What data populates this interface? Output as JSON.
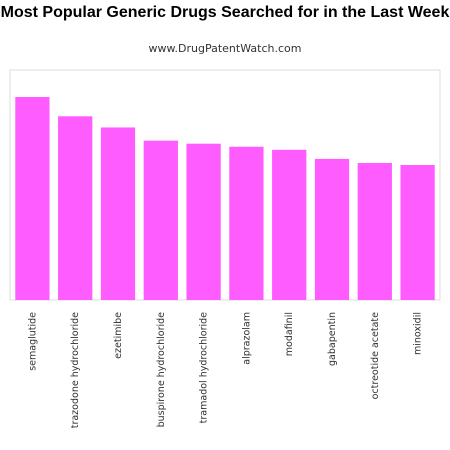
{
  "title": "Most Popular Generic Drugs Searched for in the Last Week",
  "subtitle": "www.DrugPatentWatch.com",
  "colors": {
    "bar": "#ff5cff",
    "frame": "#dddddd",
    "text": "#333333"
  },
  "chart_data": {
    "type": "bar",
    "title": "Most Popular Generic Drugs Searched for in the Last Week",
    "categories": [
      "semaglutide",
      "trazodone hydrochloride",
      "ezetimibe",
      "buspirone hydrochloride",
      "tramadol hydrochloride",
      "alprazolam",
      "modafinil",
      "gabapentin",
      "octreotide acetate",
      "minoxidil"
    ],
    "values": [
      100,
      90.5,
      85,
      78.5,
      77,
      75.5,
      74,
      69.5,
      67.5,
      66.5
    ],
    "ylim": [
      0,
      100
    ],
    "xlabel": "",
    "ylabel": "",
    "grid": false,
    "legend": "none"
  }
}
